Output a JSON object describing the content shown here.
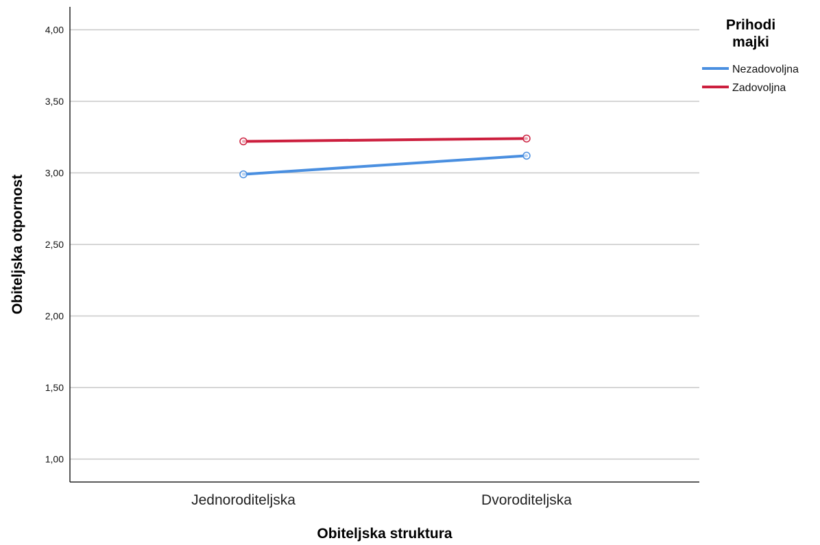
{
  "chart_data": {
    "type": "line",
    "categories": [
      "Jednoroditeljska",
      "Dvoroditeljska"
    ],
    "series": [
      {
        "name": "Nezadovoljna",
        "values": [
          2.99,
          3.12
        ],
        "color": "#4a8fe0"
      },
      {
        "name": "Zadovoljna",
        "values": [
          3.22,
          3.24
        ],
        "color": "#cc1f3e"
      }
    ],
    "xlabel": "Obiteljska struktura",
    "ylabel": "Obiteljska otpornost",
    "ylim": [
      0.84,
      4.16
    ],
    "yticks": [
      "1,00",
      "1,50",
      "2,00",
      "2,50",
      "3,00",
      "3,50",
      "4,00"
    ],
    "ytick_values": [
      1.0,
      1.5,
      2.0,
      2.5,
      3.0,
      3.5,
      4.0
    ],
    "grid": true,
    "legend": {
      "title_lines": [
        "Prihodi",
        "majki"
      ],
      "position": "top-right"
    }
  }
}
